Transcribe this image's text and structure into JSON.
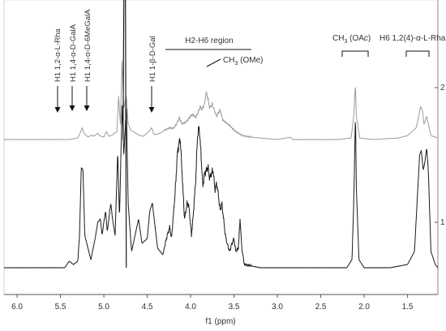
{
  "chart_data": {
    "type": "line",
    "title": "",
    "xlabel": "f1 (ppm)",
    "ylabel": "",
    "x_ticks": [
      "6.0",
      "5.5",
      "5.0",
      "4.5",
      "4.0",
      "3.5",
      "3.0",
      "2.5",
      "2.0",
      "1.5"
    ],
    "x_tick_values": [
      6.0,
      5.5,
      5.0,
      4.5,
      4.0,
      3.5,
      3.0,
      2.5,
      2.0,
      1.5
    ],
    "xlim": [
      6.15,
      1.15
    ],
    "right_axis_ticks": [
      "2",
      "1"
    ],
    "grid": false,
    "series": [
      {
        "id": "spectrum-2",
        "color": "#9b9b9b",
        "baseline": 0,
        "points": [
          [
            6.15,
            0
          ],
          [
            5.4,
            0
          ],
          [
            5.3,
            0.02
          ],
          [
            5.27,
            0.09
          ],
          [
            5.25,
            0.15
          ],
          [
            5.23,
            0.08
          ],
          [
            5.18,
            0.03
          ],
          [
            5.14,
            0.06
          ],
          [
            5.12,
            0.04
          ],
          [
            5.07,
            0.08
          ],
          [
            5.05,
            0.05
          ],
          [
            5.0,
            0.03
          ],
          [
            4.97,
            0.1
          ],
          [
            4.94,
            0.04
          ],
          [
            4.9,
            0.06
          ],
          [
            4.85,
            0.1
          ],
          [
            4.83,
            0.55
          ],
          [
            4.81,
            0.2
          ],
          [
            4.79,
            1.0
          ],
          [
            4.77,
            0.4
          ],
          [
            4.74,
            0.55
          ],
          [
            4.72,
            0.2
          ],
          [
            4.69,
            0.12
          ],
          [
            4.6,
            0.06
          ],
          [
            4.55,
            0.04
          ],
          [
            4.48,
            0.1
          ],
          [
            4.45,
            0.15
          ],
          [
            4.42,
            0.06
          ],
          [
            4.35,
            0.08
          ],
          [
            4.3,
            0.12
          ],
          [
            4.24,
            0.15
          ],
          [
            4.2,
            0.14
          ],
          [
            4.16,
            0.2
          ],
          [
            4.13,
            0.28
          ],
          [
            4.1,
            0.2
          ],
          [
            4.05,
            0.22
          ],
          [
            4.0,
            0.3
          ],
          [
            3.97,
            0.32
          ],
          [
            3.94,
            0.28
          ],
          [
            3.91,
            0.35
          ],
          [
            3.89,
            0.42
          ],
          [
            3.87,
            0.38
          ],
          [
            3.84,
            0.45
          ],
          [
            3.82,
            0.6
          ],
          [
            3.8,
            0.52
          ],
          [
            3.78,
            0.4
          ],
          [
            3.75,
            0.45
          ],
          [
            3.72,
            0.35
          ],
          [
            3.7,
            0.3
          ],
          [
            3.66,
            0.38
          ],
          [
            3.63,
            0.25
          ],
          [
            3.6,
            0.22
          ],
          [
            3.55,
            0.18
          ],
          [
            3.5,
            0.12
          ],
          [
            3.45,
            0.08
          ],
          [
            3.4,
            0.05
          ],
          [
            3.3,
            0.03
          ],
          [
            3.2,
            0.02
          ],
          [
            3.0,
            0.0
          ],
          [
            2.85,
            0.03
          ],
          [
            2.82,
            0.0
          ],
          [
            2.6,
            0.0
          ],
          [
            2.3,
            0.0
          ],
          [
            2.15,
            0.02
          ],
          [
            2.12,
            0.3
          ],
          [
            2.1,
            0.7
          ],
          [
            2.09,
            0.3
          ],
          [
            2.05,
            0.02
          ],
          [
            1.9,
            0.0
          ],
          [
            1.6,
            0.02
          ],
          [
            1.5,
            0.05
          ],
          [
            1.4,
            0.15
          ],
          [
            1.37,
            0.3
          ],
          [
            1.35,
            0.42
          ],
          [
            1.33,
            0.38
          ],
          [
            1.31,
            0.2
          ],
          [
            1.3,
            0.22
          ],
          [
            1.28,
            0.3
          ],
          [
            1.26,
            0.2
          ],
          [
            1.23,
            0.05
          ],
          [
            1.15,
            0.02
          ]
        ]
      },
      {
        "id": "spectrum-1",
        "color": "#1a1a1a",
        "baseline": 0,
        "points": [
          [
            6.15,
            0
          ],
          [
            5.45,
            0.0
          ],
          [
            5.4,
            0.04
          ],
          [
            5.35,
            0.02
          ],
          [
            5.3,
            0.04
          ],
          [
            5.28,
            0.2
          ],
          [
            5.26,
            0.62
          ],
          [
            5.24,
            0.6
          ],
          [
            5.22,
            0.2
          ],
          [
            5.15,
            0.05
          ],
          [
            5.1,
            0.18
          ],
          [
            5.07,
            0.28
          ],
          [
            5.04,
            0.3
          ],
          [
            5.02,
            0.2
          ],
          [
            5.0,
            0.28
          ],
          [
            4.98,
            0.35
          ],
          [
            4.96,
            0.22
          ],
          [
            4.92,
            0.4
          ],
          [
            4.9,
            0.3
          ],
          [
            4.87,
            0.2
          ],
          [
            4.84,
            0.72
          ],
          [
            4.82,
            0.3
          ],
          [
            4.79,
            1.0
          ],
          [
            4.77,
            0.7
          ],
          [
            4.74,
            1.0
          ],
          [
            4.72,
            0.4
          ],
          [
            4.68,
            0.1
          ],
          [
            4.62,
            0.25
          ],
          [
            4.6,
            0.3
          ],
          [
            4.56,
            0.15
          ],
          [
            4.5,
            0.18
          ],
          [
            4.47,
            0.35
          ],
          [
            4.44,
            0.4
          ],
          [
            4.42,
            0.3
          ],
          [
            4.38,
            0.12
          ],
          [
            4.32,
            0.08
          ],
          [
            4.27,
            0.2
          ],
          [
            4.24,
            0.25
          ],
          [
            4.22,
            0.18
          ],
          [
            4.18,
            0.45
          ],
          [
            4.15,
            0.72
          ],
          [
            4.12,
            0.8
          ],
          [
            4.1,
            0.6
          ],
          [
            4.07,
            0.3
          ],
          [
            4.04,
            0.4
          ],
          [
            4.02,
            0.38
          ],
          [
            3.99,
            0.2
          ],
          [
            3.97,
            0.32
          ],
          [
            3.94,
            0.55
          ],
          [
            3.92,
            0.82
          ],
          [
            3.9,
            0.86
          ],
          [
            3.88,
            0.7
          ],
          [
            3.86,
            0.5
          ],
          [
            3.84,
            0.58
          ],
          [
            3.82,
            0.6
          ],
          [
            3.8,
            0.62
          ],
          [
            3.78,
            0.55
          ],
          [
            3.76,
            0.58
          ],
          [
            3.74,
            0.6
          ],
          [
            3.72,
            0.48
          ],
          [
            3.7,
            0.52
          ],
          [
            3.68,
            0.45
          ],
          [
            3.66,
            0.35
          ],
          [
            3.64,
            0.4
          ],
          [
            3.62,
            0.3
          ],
          [
            3.6,
            0.2
          ],
          [
            3.58,
            0.15
          ],
          [
            3.55,
            0.1
          ],
          [
            3.53,
            0.14
          ],
          [
            3.5,
            0.18
          ],
          [
            3.48,
            0.1
          ],
          [
            3.45,
            0.12
          ],
          [
            3.43,
            0.3
          ],
          [
            3.41,
            0.12
          ],
          [
            3.38,
            0.02
          ],
          [
            3.2,
            0.0
          ],
          [
            2.6,
            0.0
          ],
          [
            2.2,
            0.0
          ],
          [
            2.14,
            0.05
          ],
          [
            2.12,
            0.4
          ],
          [
            2.1,
            0.95
          ],
          [
            2.09,
            0.5
          ],
          [
            2.06,
            0.05
          ],
          [
            2.0,
            0.0
          ],
          [
            1.7,
            0.0
          ],
          [
            1.5,
            0.02
          ],
          [
            1.42,
            0.1
          ],
          [
            1.38,
            0.5
          ],
          [
            1.36,
            0.7
          ],
          [
            1.34,
            0.72
          ],
          [
            1.32,
            0.6
          ],
          [
            1.3,
            0.65
          ],
          [
            1.28,
            0.74
          ],
          [
            1.26,
            0.6
          ],
          [
            1.23,
            0.1
          ],
          [
            1.18,
            0.02
          ],
          [
            1.15,
            0.0
          ]
        ]
      }
    ],
    "annotations": {
      "rha": "H1 1,2-α-L-Rha",
      "galA": "H1 1,4-α-D-GalA",
      "mgalA": "H1 1,4-α-D-6MeGalA",
      "gal": "H1 1-β-D-Gal",
      "h2h6": "H2-H6 region",
      "ome_prefix": "CH",
      "ome_sub": "3",
      "ome_suffix": " (OMe)",
      "oac_prefix": "CH",
      "oac_sub": "3",
      "oac_suffix_a": " (OA",
      "oac_suffix_b": "c",
      "oac_suffix_c": ")",
      "rha_h6": "H6 1,2(4)-α-L-Rha"
    }
  }
}
